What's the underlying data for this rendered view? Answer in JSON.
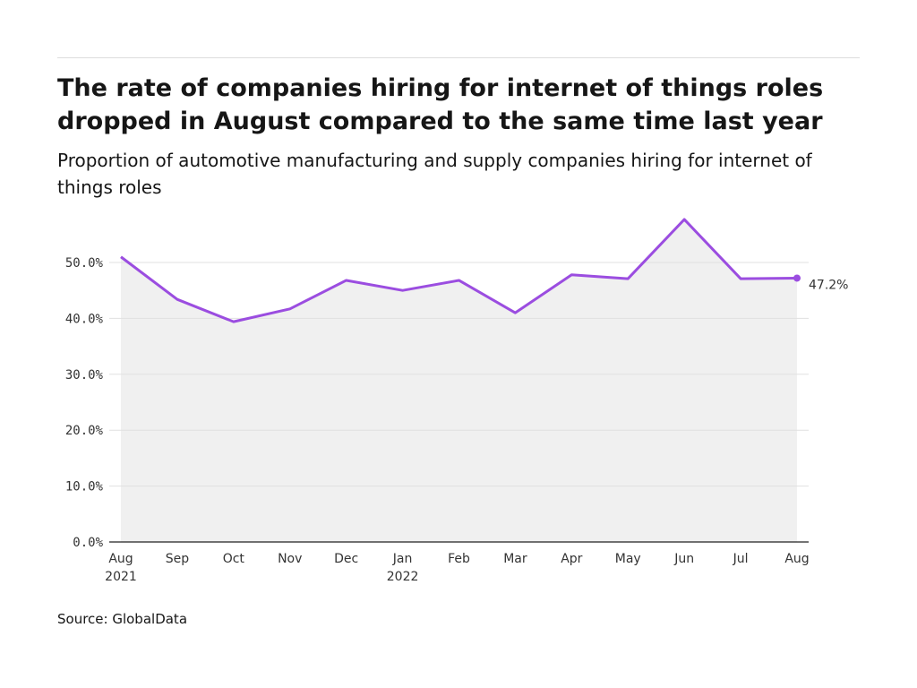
{
  "title": "The rate of companies hiring for internet of things roles dropped in August compared to the same time last year",
  "subtitle": "Proportion of automotive manufacturing and supply companies hiring for internet of things roles",
  "source": "Source: GlobalData",
  "chart_data": {
    "type": "area",
    "title": "The rate of companies hiring for internet of things roles dropped in August compared to the same time last year",
    "categories": [
      "Aug",
      "Sep",
      "Oct",
      "Nov",
      "Dec",
      "Jan",
      "Feb",
      "Mar",
      "Apr",
      "May",
      "Jun",
      "Jul",
      "Aug"
    ],
    "category_sublabels": [
      "2021",
      "",
      "",
      "",
      "",
      "2022",
      "",
      "",
      "",
      "",
      "",
      "",
      ""
    ],
    "values": [
      51.0,
      43.4,
      39.4,
      41.7,
      46.8,
      45.0,
      46.8,
      41.0,
      47.8,
      47.1,
      57.7,
      47.1,
      47.2
    ],
    "yticks": [
      "0.0%",
      "10.0%",
      "20.0%",
      "30.0%",
      "40.0%",
      "50.0%"
    ],
    "ylim": [
      0,
      50
    ],
    "end_label": "47.2%",
    "line_color": "#9b4de0",
    "fill_color": "#f0f0f0",
    "grid": true
  }
}
